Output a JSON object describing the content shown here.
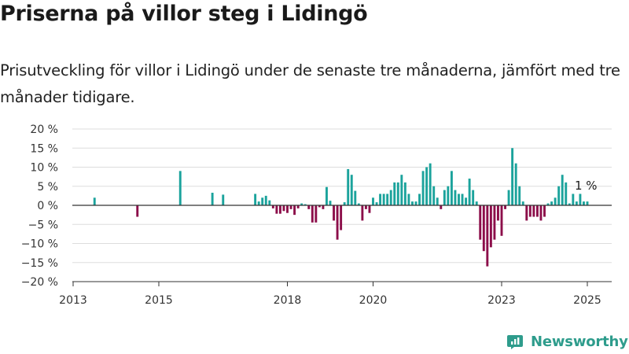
{
  "title": "Priserna på villor steg i Lidingö",
  "subtitle": "Prisutveckling för villor i Lidingö under de senaste tre månaderna, jämfört med tre månader tidigare.",
  "brand": {
    "name": "Newsworthy",
    "logo_icon": "newsworthy-logo-icon",
    "color": "#2e9c8c"
  },
  "colors": {
    "positive": "#1ba39c",
    "negative": "#8c0e4a",
    "grid": "#dddddd",
    "zero_line": "#333333"
  },
  "chart_data": {
    "type": "bar",
    "title": "Priserna på villor steg i Lidingö",
    "xlabel": "",
    "ylabel": "",
    "ylim": [
      -20,
      20
    ],
    "y_ticks": [
      20,
      15,
      10,
      5,
      0,
      -5,
      -10,
      -15,
      -20
    ],
    "y_tick_labels": [
      "20 %",
      "15 %",
      "10 %",
      "5 %",
      "0 %",
      "−5 %",
      "−10 %",
      "−15 %",
      "−20 %"
    ],
    "x_ticks": [
      "2013",
      "2015",
      "2018",
      "2020",
      "2023",
      "2025"
    ],
    "grid": true,
    "annotation": "1 %",
    "annotation_x": "2025-01",
    "x": [
      "2013-07",
      "2014-07",
      "2015-07",
      "2016-04",
      "2016-07",
      "2017-04",
      "2017-05",
      "2017-06",
      "2017-07",
      "2017-08",
      "2017-09",
      "2017-10",
      "2017-11",
      "2017-12",
      "2018-01",
      "2018-02",
      "2018-03",
      "2018-04",
      "2018-05",
      "2018-06",
      "2018-07",
      "2018-08",
      "2018-09",
      "2018-10",
      "2018-11",
      "2018-12",
      "2019-01",
      "2019-02",
      "2019-03",
      "2019-04",
      "2019-05",
      "2019-06",
      "2019-07",
      "2019-08",
      "2019-09",
      "2019-10",
      "2019-11",
      "2019-12",
      "2020-01",
      "2020-02",
      "2020-03",
      "2020-04",
      "2020-05",
      "2020-06",
      "2020-07",
      "2020-08",
      "2020-09",
      "2020-10",
      "2020-11",
      "2020-12",
      "2021-01",
      "2021-02",
      "2021-03",
      "2021-04",
      "2021-05",
      "2021-06",
      "2021-07",
      "2021-08",
      "2021-09",
      "2021-10",
      "2021-11",
      "2021-12",
      "2022-01",
      "2022-02",
      "2022-03",
      "2022-04",
      "2022-05",
      "2022-06",
      "2022-07",
      "2022-08",
      "2022-09",
      "2022-10",
      "2022-11",
      "2022-12",
      "2023-01",
      "2023-02",
      "2023-03",
      "2023-04",
      "2023-05",
      "2023-06",
      "2023-07",
      "2023-08",
      "2023-09",
      "2023-10",
      "2023-11",
      "2023-12",
      "2024-01",
      "2024-02",
      "2024-03",
      "2024-04",
      "2024-05",
      "2024-06",
      "2024-07",
      "2024-08",
      "2024-09",
      "2024-10",
      "2024-11",
      "2024-12",
      "2025-01"
    ],
    "values": [
      2,
      -3,
      9,
      3.3,
      2.8,
      3,
      1,
      2,
      2.5,
      1.3,
      -0.8,
      -2.2,
      -2.2,
      -1.5,
      -2,
      -1,
      -2.5,
      -0.8,
      0.5,
      0.3,
      -1,
      -4.5,
      -4.5,
      -0.5,
      -1,
      4.8,
      1.2,
      -4,
      -9,
      -6.5,
      0.8,
      9.5,
      8,
      3.8,
      0.5,
      -4,
      -1,
      -2,
      2,
      0.8,
      3,
      3,
      3,
      4,
      6,
      6,
      8,
      6,
      3,
      1,
      1,
      3,
      9,
      10,
      11,
      5,
      2,
      -1,
      4,
      5,
      9,
      4,
      3,
      3,
      2,
      7,
      4,
      1,
      -9,
      -12,
      -16,
      -11,
      -9,
      -4,
      -8,
      -1,
      4,
      15,
      11,
      5,
      1,
      -4,
      -3,
      -3,
      -3,
      -4,
      -3,
      0.5,
      1,
      2,
      5,
      8,
      6,
      0.5,
      3,
      1,
      3,
      1,
      1
    ]
  }
}
